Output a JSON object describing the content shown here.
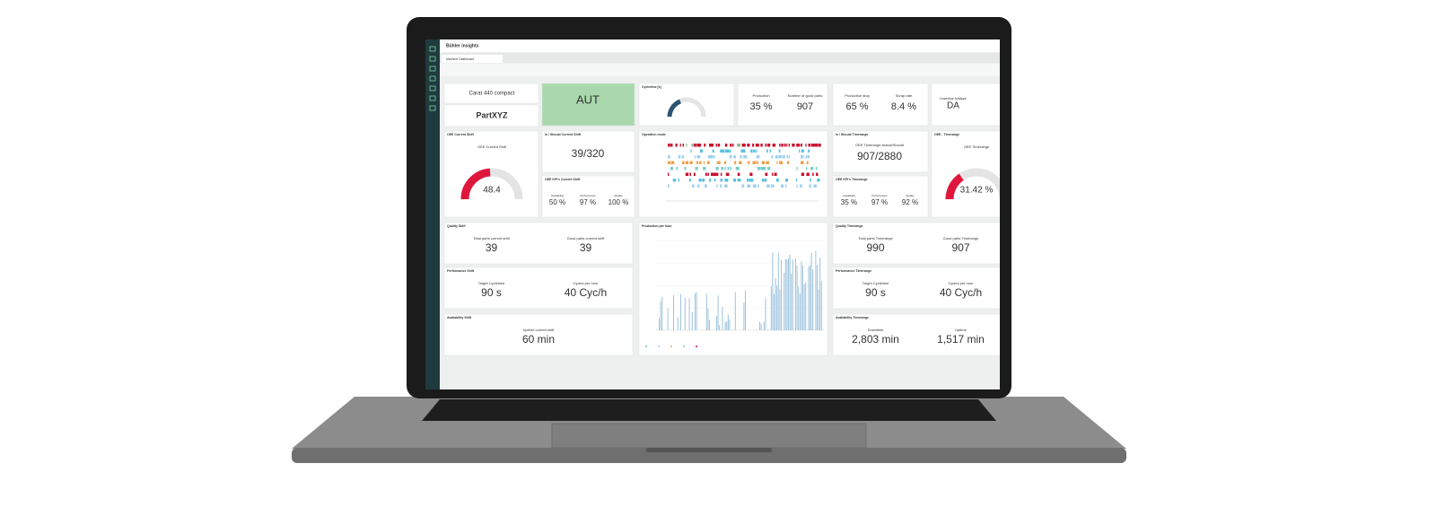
{
  "app": {
    "brand": "Bühler insights",
    "tab": "Machine Dashboard"
  },
  "machine": {
    "name": "Carat 440 compact",
    "part": "PartXYZ"
  },
  "mode": {
    "value": "AUT"
  },
  "cycletime": {
    "title": "Cycletime [s]"
  },
  "production": {
    "label_a": "Production",
    "value_a": "35 %",
    "label_b": "Number of good parts",
    "value_b": "907"
  },
  "stop": {
    "label_a": "Production stop",
    "value_a": "65 %",
    "label_b": "Scrap rate",
    "value_b": "8.4 %"
  },
  "downtime": {
    "label": "Downtime Analysis",
    "value": "DA"
  },
  "oee_shift": {
    "title": "OEE Current Shift",
    "label": "OEE Current Shift",
    "gauge": "48.4"
  },
  "is_should_shift": {
    "title": "Is / Should Current Shift",
    "value": "39/320"
  },
  "kpi_shift": {
    "title": "OEE KPI's Current Shift",
    "labels": [
      "Availability",
      "Performance",
      "Quality"
    ],
    "values": [
      "50 %",
      "97 %",
      "100 %"
    ]
  },
  "operation": {
    "title": "Operation mode"
  },
  "is_should_range": {
    "title": "Is / Should Timerange",
    "label": "OEE Timerange Actual/Should",
    "value": "907/2880"
  },
  "kpi_range": {
    "title": "OEE KPI's Timerange",
    "labels": [
      "Availability",
      "Performance",
      "Quality"
    ],
    "values": [
      "35 %",
      "97 %",
      "92 %"
    ]
  },
  "oee_range": {
    "title": "OEE - Timerange",
    "label": "OEE Timerange",
    "gauge": "31.42 %"
  },
  "quality_shift": {
    "title": "Quality Shift",
    "items": [
      {
        "label": "Total parts current shift",
        "value": "39"
      },
      {
        "label": "Good parts current shift",
        "value": "39"
      }
    ]
  },
  "performance_shift": {
    "title": "Performance Shift",
    "items": [
      {
        "label": "Target Cycletime",
        "value": "90 s"
      },
      {
        "label": "Cycles per hour",
        "value": "40 Cyc/h"
      }
    ]
  },
  "availability_shift": {
    "title": "Availability Shift",
    "items": [
      {
        "label": "Uptime current shift",
        "value": "60 min"
      }
    ]
  },
  "production_hour": {
    "title": "Production per hour"
  },
  "quality_range": {
    "title": "Quality Timerange",
    "items": [
      {
        "label": "Total parts Timerange",
        "value": "990"
      },
      {
        "label": "Good parts Timerange",
        "value": "907"
      }
    ]
  },
  "performance_range": {
    "title": "Performance Timerange",
    "items": [
      {
        "label": "Target Cycletime",
        "value": "90 s"
      },
      {
        "label": "Cycles per hour",
        "value": "40 Cyc/h"
      }
    ]
  },
  "availability_range": {
    "title": "Availability Timerange",
    "items": [
      {
        "label": "Downtime",
        "value": "2,803 min"
      },
      {
        "label": "Uptime",
        "value": "1,517 min"
      }
    ]
  }
}
